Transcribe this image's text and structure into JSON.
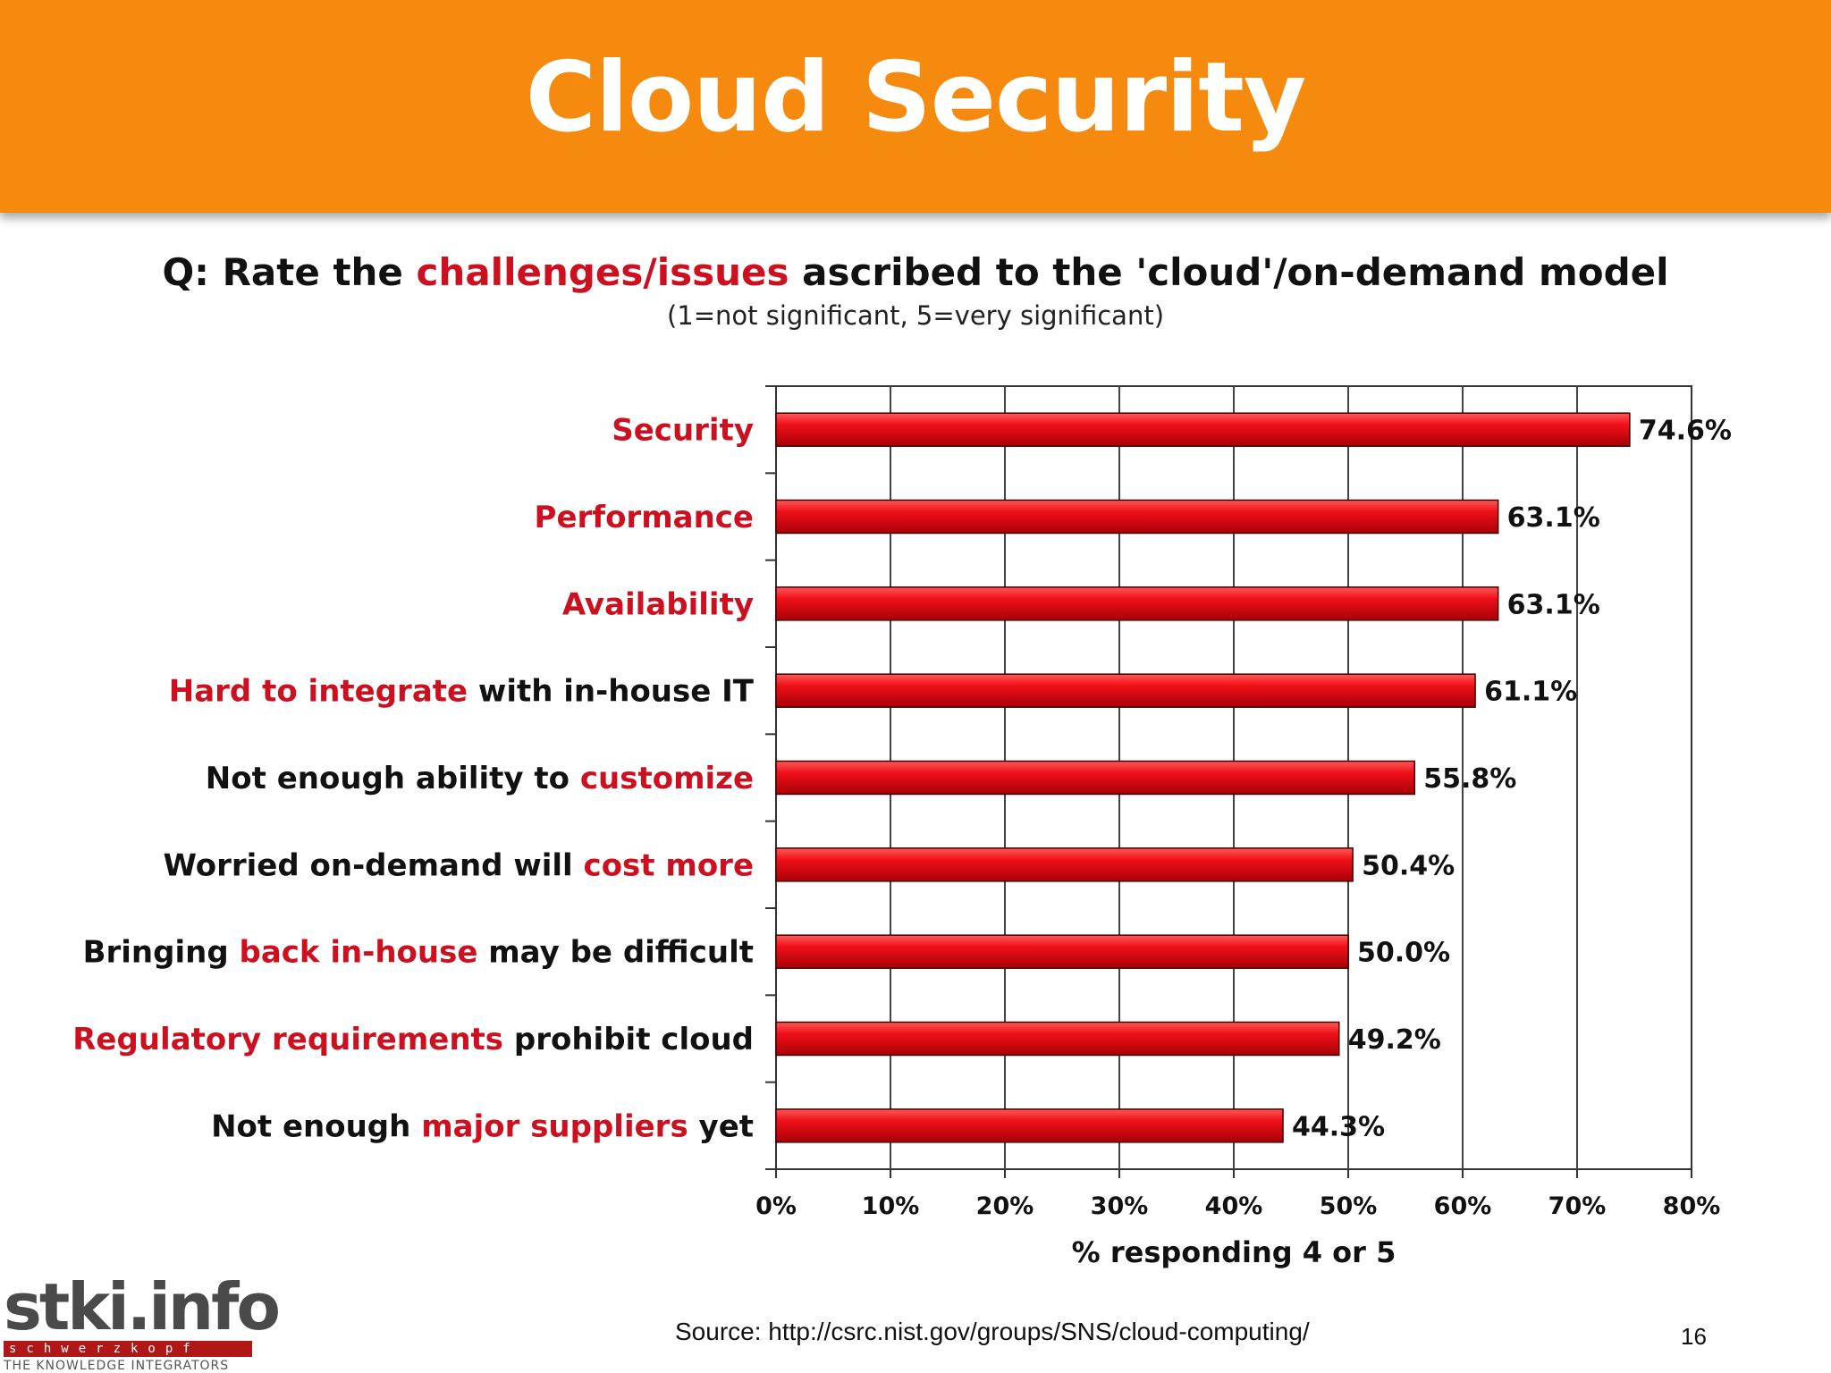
{
  "slide": {
    "title": "Cloud Security",
    "source": "Source: http://csrc.nist.gov/groups/SNS/cloud-computing/",
    "page_number": "16"
  },
  "question": {
    "prefix": "Q: Rate the ",
    "highlight": "challenges/issues",
    "suffix": " ascribed to the 'cloud'/on-demand model",
    "subtitle": "(1=not significant, 5=very significant)"
  },
  "logo": {
    "main": "stki.info",
    "strip": "schwerzkopf",
    "tagline": "THE KNOWLEDGE INTEGRATORS"
  },
  "colors": {
    "header": "#f58a0f",
    "highlight": "#cc1020",
    "bar": "#e8101a"
  },
  "chart_data": {
    "type": "bar",
    "orientation": "horizontal",
    "categories": [
      "Security",
      "Performance",
      "Availability",
      "Hard to integrate with in-house IT",
      "Not enough ability to customize",
      "Worried on-demand will cost more",
      "Bringing back in-house may be difficult",
      "Regulatory requirements prohibit cloud",
      "Not enough major suppliers yet"
    ],
    "category_parts": [
      [
        {
          "t": "Security",
          "hl": true
        }
      ],
      [
        {
          "t": "Performance",
          "hl": true
        }
      ],
      [
        {
          "t": "Availability",
          "hl": true
        }
      ],
      [
        {
          "t": "Hard to integrate",
          "hl": true
        },
        {
          "t": " with in-house IT",
          "hl": false
        }
      ],
      [
        {
          "t": "Not enough ability to ",
          "hl": false
        },
        {
          "t": "customize",
          "hl": true
        }
      ],
      [
        {
          "t": "Worried on-demand will ",
          "hl": false
        },
        {
          "t": "cost more",
          "hl": true
        }
      ],
      [
        {
          "t": "Bringing ",
          "hl": false
        },
        {
          "t": "back in-house",
          "hl": true
        },
        {
          "t": " may be difficult",
          "hl": false
        }
      ],
      [
        {
          "t": "Regulatory requirements",
          "hl": true
        },
        {
          "t": " prohibit cloud",
          "hl": false
        }
      ],
      [
        {
          "t": "Not enough ",
          "hl": false
        },
        {
          "t": "major suppliers",
          "hl": true
        },
        {
          "t": " yet",
          "hl": false
        }
      ]
    ],
    "values": [
      74.6,
      63.1,
      63.1,
      61.1,
      55.8,
      50.4,
      50.0,
      49.2,
      44.3
    ],
    "data_labels": [
      "74.6%",
      "63.1%",
      "63.1%",
      "61.1%",
      "55.8%",
      "50.4%",
      "50.0%",
      "49.2%",
      "44.3%"
    ],
    "xlim": [
      0,
      80
    ],
    "x_ticks": [
      "0%",
      "10%",
      "20%",
      "30%",
      "40%",
      "50%",
      "60%",
      "70%",
      "80%"
    ],
    "xlabel": "% responding 4 or 5",
    "grid": "vertical"
  }
}
